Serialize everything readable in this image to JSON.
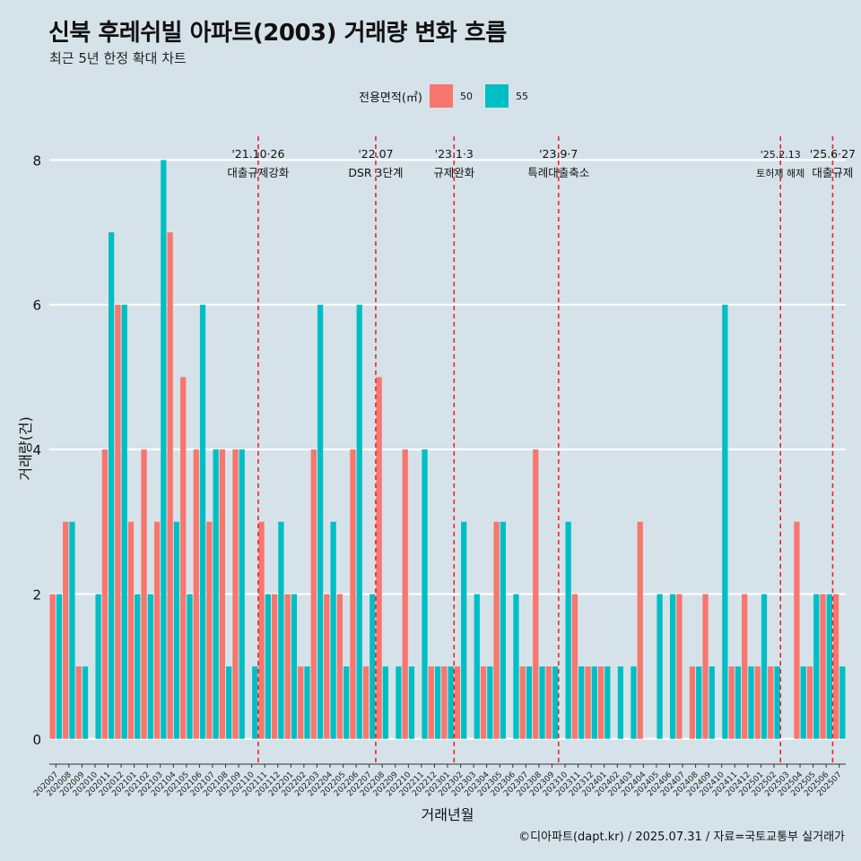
{
  "title": "신북 후레쉬빌 아파트(2003) 거래량 변화 흐름",
  "subtitle": "최근 5년 한정 확대 차트",
  "legend": {
    "title": "전용면적(㎡)",
    "items": [
      {
        "label": "50",
        "color": "#f8766d"
      },
      {
        "label": "55",
        "color": "#00bfc4"
      }
    ]
  },
  "caption": "©디아파트(dapt.kr) / 2025.07.31 / 자료=국토교통부 실거래가",
  "chart_data": {
    "type": "bar",
    "title": "신북 후레쉬빌 아파트(2003) 거래량 변화 흐름",
    "xlabel": "거래년월",
    "ylabel": "거래량(건)",
    "ylim": [
      -0.35,
      8.6
    ],
    "yticks": [
      0,
      2,
      4,
      6,
      8
    ],
    "categories": [
      "202007",
      "202008",
      "202009",
      "202010",
      "202011",
      "202012",
      "202101",
      "202102",
      "202103",
      "202104",
      "202105",
      "202106",
      "202107",
      "202108",
      "202109",
      "202110",
      "202111",
      "202112",
      "202201",
      "202202",
      "202203",
      "202204",
      "202205",
      "202206",
      "202207",
      "202208",
      "202209",
      "202210",
      "202211",
      "202212",
      "202301",
      "202302",
      "202303",
      "202304",
      "202305",
      "202306",
      "202307",
      "202308",
      "202309",
      "202310",
      "202311",
      "202312",
      "202401",
      "202402",
      "202403",
      "202404",
      "202405",
      "202406",
      "202407",
      "202408",
      "202409",
      "202410",
      "202411",
      "202412",
      "202501",
      "202502",
      "202503",
      "202504",
      "202505",
      "202506",
      "202507"
    ],
    "series": [
      {
        "name": "50",
        "color": "#f8766d",
        "values": [
          2,
          3,
          1,
          0,
          4,
          6,
          3,
          4,
          3,
          7,
          5,
          4,
          3,
          4,
          4,
          0,
          3,
          2,
          2,
          1,
          4,
          2,
          2,
          4,
          1,
          5,
          0,
          4,
          0,
          1,
          1,
          1,
          0,
          1,
          3,
          0,
          1,
          4,
          1,
          0,
          2,
          1,
          1,
          0,
          0,
          3,
          0,
          0,
          2,
          1,
          2,
          0,
          1,
          2,
          1,
          1,
          0,
          3,
          1,
          2,
          2
        ]
      },
      {
        "name": "55",
        "color": "#00bfc4",
        "values": [
          2,
          3,
          1,
          2,
          7,
          6,
          2,
          2,
          8,
          3,
          2,
          6,
          4,
          1,
          4,
          1,
          2,
          3,
          2,
          1,
          6,
          3,
          1,
          6,
          2,
          1,
          1,
          1,
          4,
          1,
          1,
          3,
          2,
          1,
          3,
          2,
          1,
          1,
          1,
          3,
          1,
          1,
          1,
          1,
          1,
          0,
          2,
          2,
          0,
          1,
          1,
          6,
          1,
          1,
          2,
          1,
          0,
          1,
          2,
          2,
          1
        ]
      }
    ],
    "events": [
      {
        "after": "202110",
        "date": "'21.10·26",
        "label": "대출규제강화"
      },
      {
        "after": "202207",
        "date": "'22.07",
        "label": "DSR 3단계"
      },
      {
        "after": "202301",
        "date": "'23.1·3",
        "label": "규제완화"
      },
      {
        "after": "202309",
        "date": "'23.9·7",
        "label": "특례대출축소"
      },
      {
        "after": "202502",
        "date": "'25.2.13",
        "label": "토허제 해제"
      },
      {
        "after": "202506",
        "date": "'25.6·27",
        "label": "대출규제"
      }
    ]
  }
}
